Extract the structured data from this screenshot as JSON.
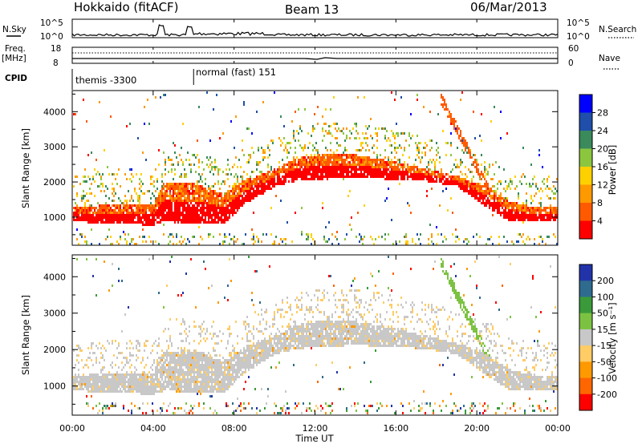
{
  "header": {
    "station": "Hokkaido (fitACF)",
    "beam": "Beam 13",
    "date": "06/Mar/2013"
  },
  "strips": {
    "nsky_label": "N.Sky",
    "nsearch_label": "N.Search",
    "noise_ticks": [
      "10^5",
      "10^0"
    ],
    "freq_label_line1": "Freq.",
    "freq_label_line2": "[MHz]",
    "freq_ticks": [
      "18",
      "8"
    ],
    "nave_label": "Nave",
    "nave_ticks": [
      "60",
      "0"
    ],
    "cpid_label": "CPID",
    "cpid_segments": [
      {
        "label": "themis -3300",
        "start_hour": 0,
        "end_hour": 6
      },
      {
        "label": "normal (fast) 151",
        "start_hour": 6,
        "end_hour": 24
      }
    ]
  },
  "chart_data": [
    {
      "type": "heatmap",
      "panel": "power",
      "ylabel": "Slant Range [km]",
      "y_ticks": [
        1000,
        2000,
        3000,
        4000
      ],
      "ylim": [
        200,
        4600
      ],
      "xlim": [
        0,
        24
      ],
      "colorbar": {
        "label": "Power [dB]",
        "ticks": [
          "28",
          "24",
          "20",
          "16",
          "12",
          "8",
          "4"
        ],
        "range": [
          0,
          32
        ],
        "colors": [
          "#ff0000",
          "#ff5a00",
          "#ff9900",
          "#ffd000",
          "#8cc63f",
          "#3a8a5c",
          "#1f4faa",
          "#0000ff"
        ]
      },
      "backscatter_band": {
        "hours": [
          0,
          2,
          4,
          4.5,
          6,
          7.5,
          8.5,
          10,
          11,
          12,
          14,
          16,
          17.5,
          19,
          20.5,
          21.5,
          22.5,
          24
        ],
        "lower_km": [
          900,
          850,
          800,
          900,
          850,
          850,
          1400,
          1900,
          2050,
          2100,
          2150,
          2100,
          2050,
          1900,
          1300,
          950,
          900,
          900
        ],
        "upper_km": [
          1300,
          1400,
          1400,
          2000,
          2000,
          1700,
          2100,
          2400,
          2700,
          2800,
          2800,
          2600,
          2400,
          2200,
          1900,
          1500,
          1350,
          1300
        ]
      }
    },
    {
      "type": "heatmap",
      "panel": "velocity",
      "ylabel": "Slant Range [km]",
      "xlabel": "Time UT",
      "y_ticks": [
        1000,
        2000,
        3000,
        4000
      ],
      "ylim": [
        200,
        4600
      ],
      "xlim": [
        0,
        24
      ],
      "x_ticks": [
        "00:00",
        "04:00",
        "08:00",
        "12:00",
        "16:00",
        "20:00",
        "00:00"
      ],
      "colorbar": {
        "label": "Velocity [m s⁻¹]",
        "ticks": [
          "200",
          "100",
          "50",
          "15",
          "-15",
          "-50",
          "-100",
          "-200"
        ],
        "range": [
          -250,
          250
        ],
        "colors": [
          "#ff0000",
          "#ff6600",
          "#ff9900",
          "#ffcc66",
          "#c8c8c8",
          "#7cc242",
          "#3a9a3a",
          "#2e6b8e",
          "#2233aa"
        ]
      }
    }
  ]
}
